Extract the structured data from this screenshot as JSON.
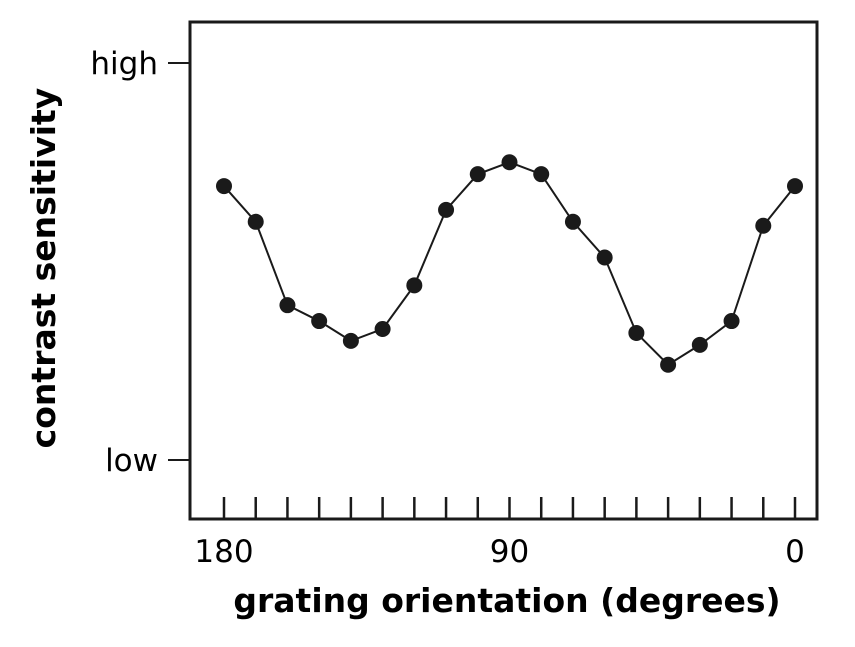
{
  "chart_data": {
    "type": "line",
    "title": "",
    "xlabel": "grating orientation (degrees)",
    "ylabel": "contrast sensitivity",
    "x_reversed": true,
    "xlim": [
      180,
      0
    ],
    "x_tick_labels": [
      "180",
      "90",
      "0"
    ],
    "x_tick_values": [
      180,
      90,
      0
    ],
    "x_minor_ticks": [
      180,
      170,
      160,
      150,
      140,
      130,
      120,
      110,
      100,
      90,
      80,
      70,
      60,
      50,
      40,
      30,
      20,
      10,
      0
    ],
    "y_tick_labels": [
      "low",
      "high"
    ],
    "y_scale_note_values": [
      0,
      1
    ],
    "ylim": [
      0,
      1
    ],
    "grid": false,
    "markers": "filled-circle",
    "color": "#1a1a1a",
    "series": [
      {
        "x": [
          180,
          170,
          160,
          150,
          140,
          130,
          120,
          110,
          100,
          90,
          80,
          70,
          60,
          50,
          40,
          30,
          20,
          10,
          0
        ],
        "y": [
          0.69,
          0.6,
          0.39,
          0.35,
          0.3,
          0.33,
          0.44,
          0.63,
          0.72,
          0.75,
          0.72,
          0.6,
          0.51,
          0.32,
          0.24,
          0.29,
          0.35,
          0.59,
          0.69
        ]
      }
    ]
  }
}
